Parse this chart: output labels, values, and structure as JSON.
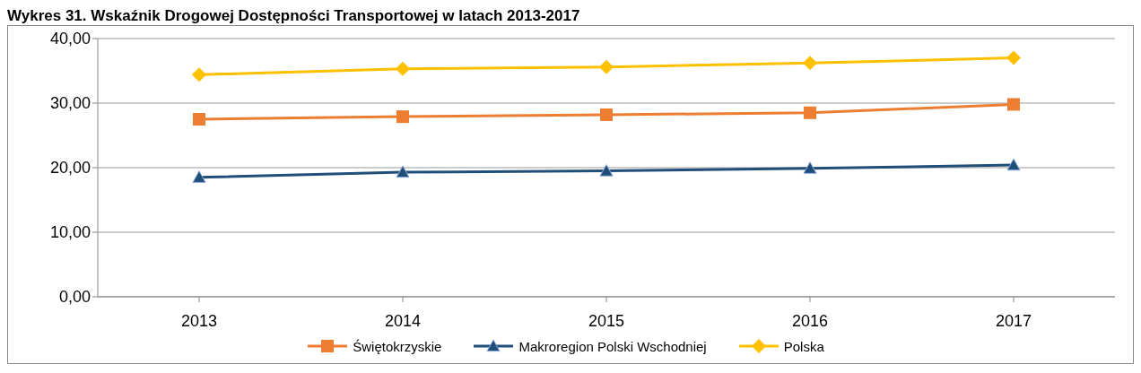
{
  "chart_data": {
    "type": "line",
    "title": "Wykres 31. Wskaźnik Drogowej Dostępności Transportowej w latach 2013-2017",
    "categories": [
      "2013",
      "2014",
      "2015",
      "2016",
      "2017"
    ],
    "series": [
      {
        "name": "Świętokrzyskie",
        "color": "#ed7d31",
        "marker": "square",
        "values": [
          27.5,
          27.9,
          28.2,
          28.5,
          29.8
        ]
      },
      {
        "name": "Makroregion Polski Wschodniej",
        "color": "#1f4e79",
        "marker": "triangle",
        "values": [
          18.5,
          19.3,
          19.5,
          19.9,
          20.4
        ]
      },
      {
        "name": "Polska",
        "color": "#ffc000",
        "marker": "diamond",
        "values": [
          34.4,
          35.3,
          35.6,
          36.2,
          37.0
        ]
      }
    ],
    "ylim": [
      0,
      40
    ],
    "yticks": [
      {
        "value": 0,
        "label": "0,00"
      },
      {
        "value": 10,
        "label": "10,00"
      },
      {
        "value": 20,
        "label": "20,00"
      },
      {
        "value": 30,
        "label": "30,00"
      },
      {
        "value": 40,
        "label": "40,00"
      }
    ],
    "grid": "y",
    "legend": "bottom"
  }
}
